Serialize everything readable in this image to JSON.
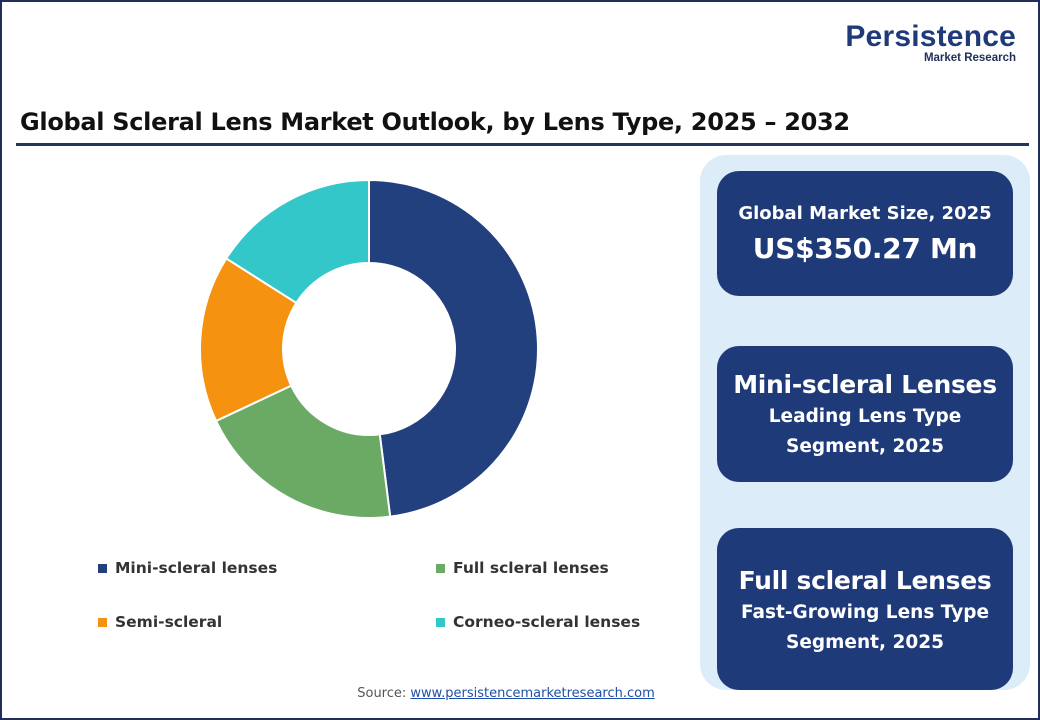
{
  "logo": {
    "name": "Persistence",
    "tagline": "Market Research"
  },
  "title": "Global Scleral Lens Market Outlook, by Lens Type, 2025 – 2032",
  "chart_data": {
    "type": "pie",
    "donut": true,
    "categories": [
      "Mini-scleral lenses",
      "Full scleral lenses",
      "Semi-scleral",
      "Corneo-scleral lenses"
    ],
    "values": [
      48,
      20,
      16,
      16
    ],
    "colors": [
      "#23407e",
      "#6aaa64",
      "#f5920f",
      "#33c7c9"
    ],
    "slice_order": [
      "Mini-scleral lenses",
      "Full scleral lenses",
      "Semi-scleral",
      "Corneo-scleral lenses"
    ],
    "start": "top, clockwise",
    "legend": {
      "placement": "bottom",
      "items": [
        {
          "label": "Mini-scleral lenses",
          "color": "#23407e"
        },
        {
          "label": "Full scleral lenses",
          "color": "#6aaa64"
        },
        {
          "label": "Semi-scleral",
          "color": "#f5920f"
        },
        {
          "label": "Corneo-scleral lenses",
          "color": "#33c7c9"
        }
      ]
    }
  },
  "cards": [
    {
      "line1": "Global Market Size, 2025",
      "line2": "US$350.27 Mn"
    },
    {
      "line1": "Mini-scleral Lenses",
      "line2": "Leading Lens Type",
      "line3": "Segment, 2025"
    },
    {
      "line1": "Full scleral Lenses",
      "line2": "Fast-Growing Lens Type",
      "line3": "Segment, 2025"
    }
  ],
  "source": {
    "label": "Source:",
    "link": "www.persistencemarketresearch.com"
  },
  "colors": {
    "brand": "#1f3a78",
    "panel": "#dcecf8",
    "rule": "#23345f"
  }
}
